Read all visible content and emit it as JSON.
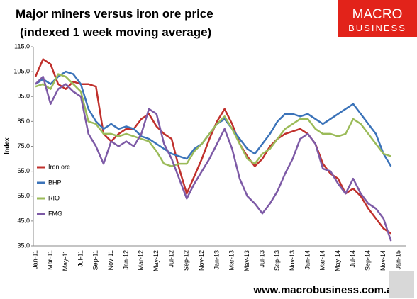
{
  "chart_data": {
    "type": "line",
    "title": "Major miners versus iron ore price",
    "subtitle": "(indexed 1 week moving average)",
    "y_label": "Index",
    "brand": [
      "MACRO",
      "BUSINESS"
    ],
    "footer": "www.macrobusiness.com.au",
    "categories": [
      "Jan-11",
      null,
      "Mar-11",
      null,
      "May-11",
      null,
      "Jul-11",
      null,
      "Sep-11",
      null,
      "Nov-11",
      null,
      "Jan-12",
      null,
      "Mar-12",
      null,
      "May-12",
      null,
      "Jul-12",
      null,
      "Sep-12",
      null,
      "Nov-12",
      null,
      "Jan-13",
      null,
      "Mar-13",
      null,
      "May-13",
      null,
      "Jul-13",
      null,
      "Sep-13",
      null,
      "Nov-13",
      null,
      "Jan-14",
      null,
      "Mar-14",
      null,
      "May-14",
      null,
      "Jul-14",
      null,
      "Sep-14",
      null,
      "Nov-14",
      null,
      "Jan-15"
    ],
    "series": [
      {
        "name": "Iron ore",
        "color": "#c0302c",
        "values": [
          103,
          110,
          108,
          100,
          98,
          101,
          100,
          100,
          99,
          80,
          77,
          80,
          82,
          82,
          86,
          88,
          83,
          80,
          78,
          66,
          56,
          63,
          70,
          78,
          85,
          90,
          84,
          76,
          71,
          67,
          70,
          75,
          78,
          80,
          81,
          82,
          80,
          76,
          68,
          64,
          62,
          56,
          58,
          55,
          50,
          46,
          42,
          40,
          null
        ]
      },
      {
        "name": "BHP",
        "color": "#3b73b9",
        "values": [
          100,
          102,
          100,
          103,
          105,
          104,
          100,
          90,
          85,
          82,
          84,
          82,
          83,
          82,
          79,
          78,
          76,
          74,
          72,
          71,
          70,
          74,
          76,
          80,
          84,
          86,
          82,
          78,
          74,
          72,
          76,
          80,
          85,
          88,
          88,
          87,
          88,
          86,
          84,
          86,
          88,
          90,
          92,
          88,
          84,
          80,
          72,
          67,
          null
        ]
      },
      {
        "name": "RIO",
        "color": "#9bbb59",
        "values": [
          99,
          100,
          98,
          104,
          103,
          100,
          97,
          85,
          84,
          80,
          80,
          79,
          80,
          79,
          78,
          77,
          73,
          68,
          67,
          68,
          68,
          73,
          76,
          80,
          84,
          87,
          82,
          76,
          70,
          68,
          72,
          74,
          78,
          82,
          84,
          86,
          86,
          82,
          80,
          80,
          79,
          80,
          86,
          84,
          80,
          76,
          72,
          71,
          null
        ]
      },
      {
        "name": "FMG",
        "color": "#7d5aa6",
        "values": [
          100,
          103,
          92,
          98,
          100,
          97,
          95,
          80,
          75,
          68,
          77,
          75,
          77,
          75,
          80,
          90,
          88,
          76,
          70,
          62,
          54,
          60,
          65,
          70,
          76,
          82,
          74,
          62,
          55,
          52,
          48,
          52,
          57,
          64,
          70,
          78,
          80,
          76,
          66,
          65,
          60,
          56,
          62,
          56,
          52,
          50,
          46,
          37,
          null
        ]
      }
    ],
    "ylim": [
      35,
      115
    ],
    "yticks": [
      {
        "value": 35,
        "label": "35.0"
      },
      {
        "value": 45,
        "label": "45.0"
      },
      {
        "value": 55,
        "label": "55.0"
      },
      {
        "value": 65,
        "label": "65.0"
      },
      {
        "value": 75,
        "label": "75.0"
      },
      {
        "value": 85,
        "label": "85.0"
      },
      {
        "value": 95,
        "label": "95.0"
      },
      {
        "value": 105,
        "label": "105.0"
      },
      {
        "value": 115,
        "label": "115.0"
      }
    ],
    "grid": false,
    "legend": "left"
  }
}
